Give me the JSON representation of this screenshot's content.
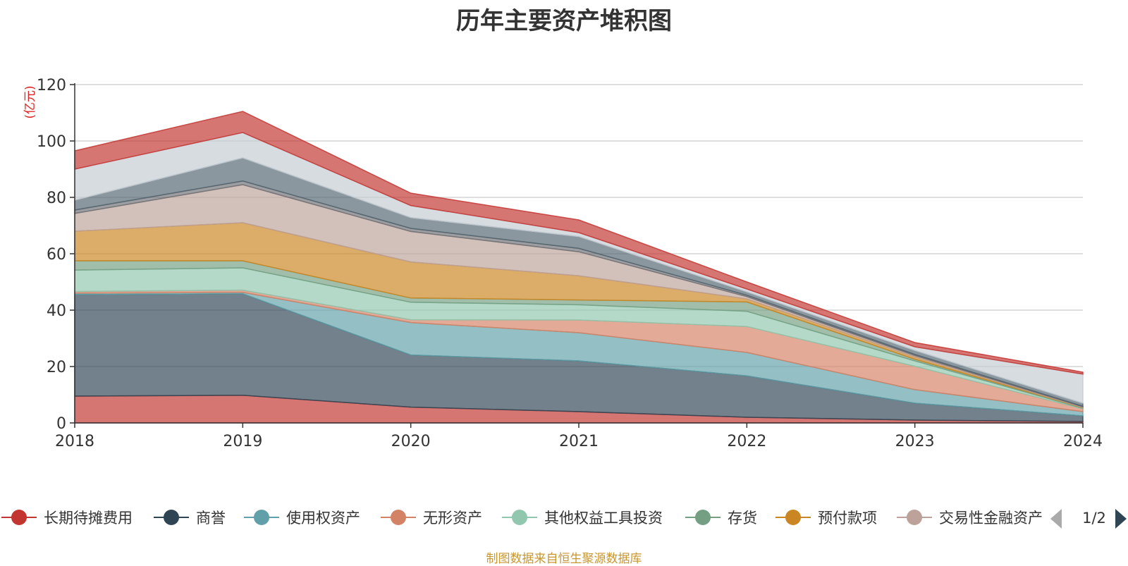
{
  "chart_data": {
    "type": "area",
    "stacked": true,
    "title": "历年主要资产堆积图",
    "unit": "(亿元)",
    "x": [
      "2018",
      "2019",
      "2020",
      "2021",
      "2022",
      "2023",
      "2024"
    ],
    "ylim": [
      0,
      120
    ],
    "yticks": [
      0,
      20,
      40,
      60,
      80,
      100,
      120
    ],
    "grid": true,
    "legend_position": "bottom",
    "legend_page": "1/2",
    "series": [
      {
        "name": "长期待摊费用",
        "color": "#c23531",
        "values": [
          9.5,
          9.8,
          5.6,
          4.0,
          2.0,
          1.0,
          0.5
        ]
      },
      {
        "name": "商誉",
        "color": "#2f4554",
        "values": [
          36.0,
          36.0,
          18.5,
          18.0,
          14.7,
          6.0,
          2.0
        ]
      },
      {
        "name": "使用权资产",
        "color": "#61a0a8",
        "values": [
          0.5,
          0.5,
          11.5,
          10.0,
          8.3,
          4.8,
          1.5
        ]
      },
      {
        "name": "无形资产",
        "color": "#d48265",
        "values": [
          0.6,
          0.8,
          1.0,
          4.5,
          9.2,
          8.3,
          1.0
        ]
      },
      {
        "name": "其他权益工具投资",
        "color": "#91c7ae",
        "values": [
          7.6,
          7.9,
          6.2,
          5.4,
          5.4,
          1.9,
          0.2
        ]
      },
      {
        "name": "存货",
        "color": "#749f83",
        "values": [
          3.3,
          2.5,
          1.5,
          1.7,
          3.3,
          0.6,
          0.2
        ]
      },
      {
        "name": "预付款项",
        "color": "#ca8622",
        "values": [
          10.5,
          13.5,
          12.8,
          8.6,
          1.1,
          0.8,
          0.1
        ]
      },
      {
        "name": "交易性金融资产",
        "color": "#bda29a",
        "values": [
          6.3,
          13.5,
          10.8,
          8.5,
          0.8,
          0.5,
          0.2
        ]
      },
      {
        "name": "",
        "color": "#6e7074",
        "values": [
          1.2,
          1.3,
          1.1,
          1.2,
          0.5,
          0.4,
          0.2
        ]
      },
      {
        "name": "",
        "color": "#546570",
        "values": [
          3.5,
          8.2,
          3.8,
          4.2,
          1.2,
          1.4,
          1.1
        ]
      },
      {
        "name": "",
        "color": "#c4ccd3",
        "values": [
          11.0,
          9.0,
          4.3,
          1.4,
          1.0,
          1.3,
          10.3
        ]
      },
      {
        "name": "",
        "color": "#c23531",
        "values": [
          6.5,
          7.5,
          4.4,
          4.5,
          2.5,
          1.5,
          0.7
        ]
      }
    ],
    "note": "制图数据来自恒生聚源数据库"
  }
}
